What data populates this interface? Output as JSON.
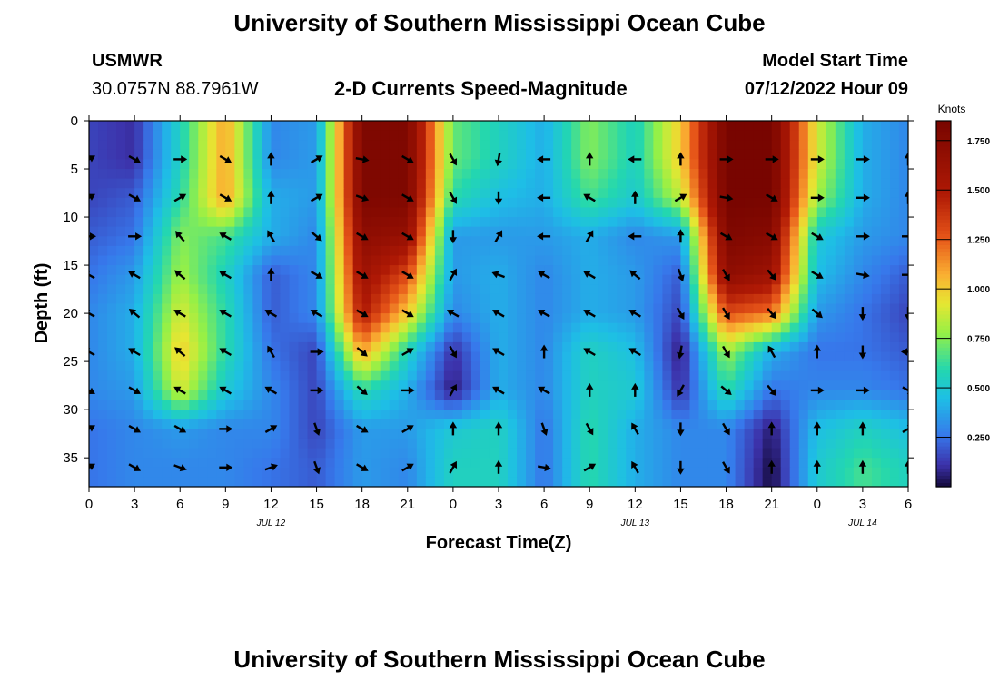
{
  "header": {
    "title": "University of Southern Mississippi Ocean Cube",
    "station": "USMWR",
    "coords": "30.0757N  88.7961W",
    "plot_title": "2-D Currents Speed-Magnitude",
    "model_start_label": "Model Start Time",
    "model_start_value": "07/12/2022 Hour 09"
  },
  "footer": {
    "title": "University of Southern Mississippi Ocean Cube"
  },
  "chart_data": {
    "type": "heatmap",
    "title": "2-D Currents Speed-Magnitude",
    "xlabel": "Forecast Time(Z)",
    "ylabel": "Depth (ft)",
    "x_ticks": [
      "0",
      "3",
      "6",
      "9",
      "12",
      "15",
      "18",
      "21",
      "0",
      "3",
      "6",
      "9",
      "12",
      "15",
      "18",
      "21",
      "0",
      "3",
      "6"
    ],
    "x_range_hours": [
      0,
      54
    ],
    "date_labels": [
      {
        "label": "JUL 12",
        "hour": 12
      },
      {
        "label": "JUL 13",
        "hour": 36
      },
      {
        "label": "JUL 14",
        "hour": 51
      }
    ],
    "y_ticks": [
      "0",
      "5",
      "10",
      "15",
      "20",
      "25",
      "30",
      "35"
    ],
    "y_range_ft": [
      0,
      38
    ],
    "colorbar": {
      "label": "Knots",
      "min": 0,
      "max": 1.85,
      "ticks": [
        "0.250",
        "0.500",
        "0.750",
        "1.000",
        "1.250",
        "1.500",
        "1.750"
      ],
      "tick_values": [
        0.25,
        0.5,
        0.75,
        1.0,
        1.25,
        1.5,
        1.75
      ]
    },
    "depth_levels_ft": [
      4,
      8,
      12,
      16,
      20,
      24,
      28,
      32,
      36
    ],
    "arrow_times_h": [
      0,
      3,
      6,
      9,
      12,
      15,
      18,
      21,
      24,
      27,
      30,
      33,
      36,
      39,
      42,
      45,
      48,
      51,
      54
    ],
    "speed_knots": [
      [
        0.15,
        0.1,
        0.55,
        1.1,
        0.3,
        0.35,
        1.8,
        1.8,
        0.7,
        0.55,
        0.4,
        0.75,
        0.55,
        1.0,
        1.85,
        1.85,
        0.9,
        0.4,
        0.3
      ],
      [
        0.15,
        0.2,
        0.6,
        1.1,
        0.4,
        0.35,
        1.8,
        1.8,
        0.6,
        0.45,
        0.4,
        0.65,
        0.5,
        0.85,
        1.85,
        1.85,
        0.8,
        0.4,
        0.3
      ],
      [
        0.2,
        0.25,
        0.75,
        0.65,
        0.4,
        0.3,
        1.7,
        1.65,
        0.35,
        0.35,
        0.35,
        0.4,
        0.3,
        0.35,
        1.8,
        1.75,
        0.5,
        0.35,
        0.3
      ],
      [
        0.25,
        0.35,
        0.8,
        0.55,
        0.2,
        0.3,
        1.6,
        1.3,
        0.35,
        0.4,
        0.3,
        0.4,
        0.35,
        0.2,
        1.7,
        1.6,
        0.45,
        0.3,
        0.2
      ],
      [
        0.3,
        0.4,
        0.9,
        0.6,
        0.2,
        0.3,
        1.5,
        1.0,
        0.3,
        0.4,
        0.3,
        0.4,
        0.35,
        0.15,
        1.3,
        1.2,
        0.35,
        0.25,
        0.15
      ],
      [
        0.3,
        0.4,
        1.0,
        0.6,
        0.25,
        0.15,
        1.1,
        0.55,
        0.1,
        0.4,
        0.3,
        0.55,
        0.45,
        0.05,
        0.8,
        0.4,
        0.25,
        0.25,
        0.2
      ],
      [
        0.3,
        0.35,
        0.9,
        0.5,
        0.3,
        0.15,
        0.6,
        0.4,
        0.05,
        0.4,
        0.3,
        0.55,
        0.5,
        0.1,
        0.6,
        0.25,
        0.3,
        0.3,
        0.25
      ],
      [
        0.25,
        0.3,
        0.35,
        0.3,
        0.3,
        0.15,
        0.35,
        0.35,
        0.5,
        0.55,
        0.25,
        0.6,
        0.4,
        0.3,
        0.3,
        0.05,
        0.45,
        0.55,
        0.45
      ],
      [
        0.25,
        0.3,
        0.3,
        0.3,
        0.25,
        0.2,
        0.35,
        0.3,
        0.55,
        0.55,
        0.25,
        0.6,
        0.4,
        0.3,
        0.3,
        0.0,
        0.5,
        0.65,
        0.55
      ]
    ],
    "direction_deg": [
      [
        60,
        120,
        90,
        120,
        0,
        60,
        100,
        120,
        150,
        190,
        270,
        0,
        270,
        0,
        90,
        90,
        90,
        90,
        0
      ],
      [
        60,
        120,
        60,
        120,
        0,
        60,
        110,
        120,
        150,
        180,
        270,
        300,
        0,
        60,
        100,
        120,
        90,
        90,
        0
      ],
      [
        90,
        90,
        320,
        300,
        330,
        130,
        120,
        120,
        180,
        30,
        270,
        30,
        270,
        0,
        120,
        120,
        120,
        90,
        90
      ],
      [
        300,
        300,
        310,
        300,
        0,
        120,
        120,
        120,
        30,
        290,
        300,
        300,
        310,
        160,
        150,
        140,
        120,
        100,
        90
      ],
      [
        300,
        310,
        300,
        300,
        300,
        300,
        120,
        120,
        300,
        300,
        300,
        300,
        300,
        150,
        150,
        140,
        130,
        180,
        180
      ],
      [
        300,
        300,
        310,
        300,
        330,
        90,
        130,
        60,
        150,
        300,
        0,
        300,
        300,
        190,
        150,
        330,
        0,
        180,
        270
      ],
      [
        120,
        120,
        300,
        300,
        300,
        90,
        130,
        90,
        30,
        300,
        300,
        0,
        0,
        210,
        130,
        140,
        90,
        90,
        120
      ],
      [
        60,
        120,
        120,
        90,
        60,
        160,
        120,
        60,
        0,
        0,
        160,
        150,
        330,
        180,
        150,
        0,
        0,
        0,
        60
      ],
      [
        60,
        120,
        110,
        90,
        70,
        160,
        120,
        60,
        30,
        0,
        100,
        60,
        330,
        180,
        150,
        0,
        0,
        0,
        0
      ]
    ]
  }
}
